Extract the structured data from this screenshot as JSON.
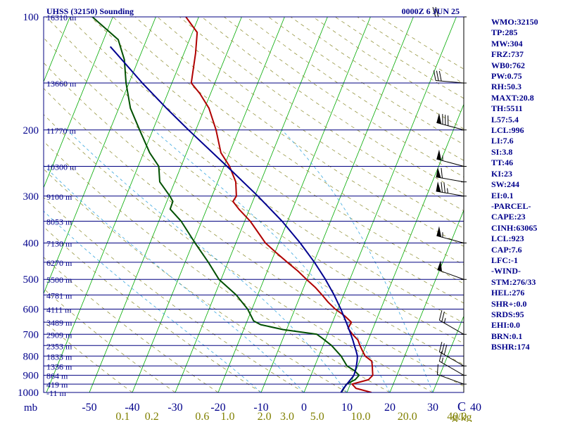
{
  "header": {
    "station": "UHSS (32150) Sounding",
    "time": "0000Z  6 JUN 25"
  },
  "panel_items": [
    "WMO:32150",
    "TP:285",
    "MW:304",
    "FRZ:737",
    "WB0:762",
    "PW:0.75",
    "RH:50.3",
    "MAXT:20.8",
    "TH:5511",
    "L57:5.4",
    "LCL:996",
    "LI:7.6",
    "SI:3.8",
    "TT:46",
    "KI:23",
    "SW:244",
    "EI:0.1",
    "-PARCEL-",
    "CAPE:23",
    "CINH:63065",
    "LCL:923",
    "CAP:7.6",
    "LFC:-1",
    "-WIND-",
    "STM:276/33",
    "HEL:276",
    "SHR+:0.0",
    "SRDS:95",
    "EHI:0.0",
    "BRN:0.1",
    "BSHR:174"
  ],
  "chart_data": {
    "type": "line",
    "pressure_levels": [
      {
        "p": 100,
        "label": "100",
        "height": "16310 m"
      },
      {
        "p": 150,
        "label": "",
        "height": "13660 m"
      },
      {
        "p": 200,
        "label": "200",
        "height": "11770 m"
      },
      {
        "p": 250,
        "label": "",
        "height": "10300 m"
      },
      {
        "p": 300,
        "label": "300",
        "height": "9100 m"
      },
      {
        "p": 350,
        "label": "",
        "height": "8053 m"
      },
      {
        "p": 400,
        "label": "400",
        "height": "7130 m"
      },
      {
        "p": 450,
        "label": "",
        "height": "6270 m"
      },
      {
        "p": 500,
        "label": "500",
        "height": "5500 m"
      },
      {
        "p": 550,
        "label": "",
        "height": "4781 m"
      },
      {
        "p": 600,
        "label": "600",
        "height": "4111 m"
      },
      {
        "p": 650,
        "label": "",
        "height": "3489 m"
      },
      {
        "p": 700,
        "label": "700",
        "height": "2909 m"
      },
      {
        "p": 750,
        "label": "",
        "height": "2353 m"
      },
      {
        "p": 800,
        "label": "800",
        "height": "1833 m"
      },
      {
        "p": 850,
        "label": "",
        "height": "1336 m"
      },
      {
        "p": 900,
        "label": "900",
        "height": "864 m"
      },
      {
        "p": 950,
        "label": "",
        "height": "419 m"
      },
      {
        "p": 1000,
        "label": "1000",
        "height": "-11 m"
      }
    ],
    "pressure_unit": "mb",
    "temperature_ticks": [
      "-50",
      "-40",
      "-30",
      "-20",
      "-10",
      "0",
      "10",
      "20",
      "30",
      "40"
    ],
    "mixing_ratio_labels": [
      "0.1",
      "0.2",
      "0.6",
      "1.0",
      "2.0",
      "3.0",
      "5.0",
      "10.0",
      "20.0",
      "40.0"
    ],
    "mixing_ratio_unit": "g/kg",
    "corner_label": "C",
    "series": [
      {
        "color": "#b00000",
        "points": [
          [
            1000,
            15.7
          ],
          [
            975,
            11.7
          ],
          [
            950,
            10.4
          ],
          [
            925,
            13.8
          ],
          [
            900,
            14.4
          ],
          [
            875,
            13.9
          ],
          [
            850,
            13.4
          ],
          [
            825,
            12.8
          ],
          [
            800,
            10.8
          ],
          [
            775,
            9.7
          ],
          [
            750,
            8.6
          ],
          [
            725,
            7.6
          ],
          [
            700,
            5.8
          ],
          [
            675,
            4.2
          ],
          [
            650,
            4.4
          ],
          [
            625,
            2.2
          ],
          [
            600,
            -0.6
          ],
          [
            575,
            -2.9
          ],
          [
            550,
            -5.0
          ],
          [
            525,
            -7.3
          ],
          [
            500,
            -10.1
          ],
          [
            475,
            -12.9
          ],
          [
            450,
            -16.2
          ],
          [
            425,
            -19.6
          ],
          [
            400,
            -23.1
          ],
          [
            350,
            -28.7
          ],
          [
            325,
            -32.5
          ],
          [
            310,
            -34.6
          ],
          [
            300,
            -34.3
          ],
          [
            275,
            -35.8
          ],
          [
            250,
            -38.7
          ],
          [
            230,
            -42.0
          ],
          [
            200,
            -45.3
          ],
          [
            175,
            -49.0
          ],
          [
            160,
            -52.5
          ],
          [
            150,
            -55.5
          ],
          [
            125,
            -57.3
          ],
          [
            110,
            -58.9
          ],
          [
            100,
            -63.0
          ]
        ]
      },
      {
        "color": "#005000",
        "points": [
          [
            1000,
            8.7
          ],
          [
            950,
            9.1
          ],
          [
            925,
            10.7
          ],
          [
            900,
            11.2
          ],
          [
            875,
            9.7
          ],
          [
            850,
            7.5
          ],
          [
            800,
            5.2
          ],
          [
            750,
            2.0
          ],
          [
            720,
            -0.6
          ],
          [
            700,
            -2.5
          ],
          [
            680,
            -10.8
          ],
          [
            660,
            -16.5
          ],
          [
            645,
            -18.5
          ],
          [
            600,
            -21.0
          ],
          [
            550,
            -25.0
          ],
          [
            500,
            -30.5
          ],
          [
            450,
            -34.6
          ],
          [
            400,
            -39.5
          ],
          [
            350,
            -44.8
          ],
          [
            325,
            -48.5
          ],
          [
            310,
            -48.6
          ],
          [
            300,
            -49.8
          ],
          [
            275,
            -53.5
          ],
          [
            250,
            -55.2
          ],
          [
            230,
            -58.6
          ],
          [
            200,
            -63.1
          ],
          [
            175,
            -67.3
          ],
          [
            150,
            -70.7
          ],
          [
            130,
            -73.3
          ],
          [
            115,
            -76.6
          ],
          [
            100,
            -84.8
          ]
        ]
      },
      {
        "color": "#000090",
        "points": [
          [
            1000,
            8.6
          ],
          [
            975,
            8.8
          ],
          [
            950,
            9.2
          ],
          [
            925,
            9.6
          ],
          [
            900,
            10.0
          ],
          [
            875,
            9.9
          ],
          [
            850,
            9.7
          ],
          [
            825,
            9.4
          ],
          [
            800,
            9.0
          ],
          [
            775,
            8.2
          ],
          [
            750,
            7.3
          ],
          [
            725,
            6.4
          ],
          [
            700,
            5.4
          ],
          [
            650,
            3.2
          ],
          [
            600,
            0.7
          ],
          [
            550,
            -2.2
          ],
          [
            500,
            -5.7
          ],
          [
            450,
            -9.9
          ],
          [
            400,
            -15.0
          ],
          [
            350,
            -21.3
          ],
          [
            300,
            -29.3
          ],
          [
            250,
            -39.3
          ],
          [
            200,
            -51.7
          ],
          [
            175,
            -58.9
          ],
          [
            150,
            -66.9
          ],
          [
            125,
            -75.8
          ],
          [
            120,
            -77.8
          ]
        ]
      }
    ],
    "wind_barbs": [
      {
        "p": 100,
        "dir": 270,
        "spd": 20
      },
      {
        "p": 150,
        "dir": 275,
        "spd": 30
      },
      {
        "p": 200,
        "dir": 285,
        "spd": 80
      },
      {
        "p": 250,
        "dir": 285,
        "spd": 55
      },
      {
        "p": 275,
        "dir": 280,
        "spd": 60
      },
      {
        "p": 300,
        "dir": 280,
        "spd": 75
      },
      {
        "p": 400,
        "dir": 285,
        "spd": 55
      },
      {
        "p": 500,
        "dir": 290,
        "spd": 50
      },
      {
        "p": 700,
        "dir": 300,
        "spd": 25
      },
      {
        "p": 850,
        "dir": 300,
        "spd": 30
      },
      {
        "p": 900,
        "dir": 300,
        "spd": 15
      },
      {
        "p": 950,
        "dir": 290,
        "spd": 10
      }
    ]
  }
}
